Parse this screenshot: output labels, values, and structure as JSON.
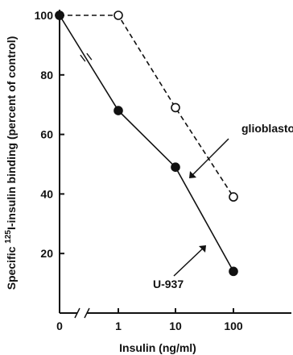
{
  "chart_data": {
    "type": "line",
    "xlabel": "Insulin (ng/ml)",
    "ylabel_main": "Specific ",
    "ylabel_sup": "125",
    "ylabel_rest": "I-insulin binding (percent of control)",
    "x_tick_labels": [
      "0",
      "1",
      "10",
      "100"
    ],
    "y_ticks": [
      20,
      40,
      60,
      80,
      100
    ],
    "ylim": [
      0,
      100
    ],
    "x_scale": "log with axis break between 0 and 1",
    "series": [
      {
        "name": "glioblastoma",
        "style": "dashed",
        "marker": "open-circle",
        "x": [
          0,
          1,
          10,
          100
        ],
        "y": [
          100,
          100,
          69,
          39
        ]
      },
      {
        "name": "U-937",
        "style": "solid",
        "marker": "filled-circle",
        "x": [
          0,
          1,
          10,
          100
        ],
        "y": [
          100,
          68,
          49,
          14
        ]
      }
    ],
    "line_color": "#111111",
    "grid": false,
    "legend": "inline labels with arrows"
  }
}
